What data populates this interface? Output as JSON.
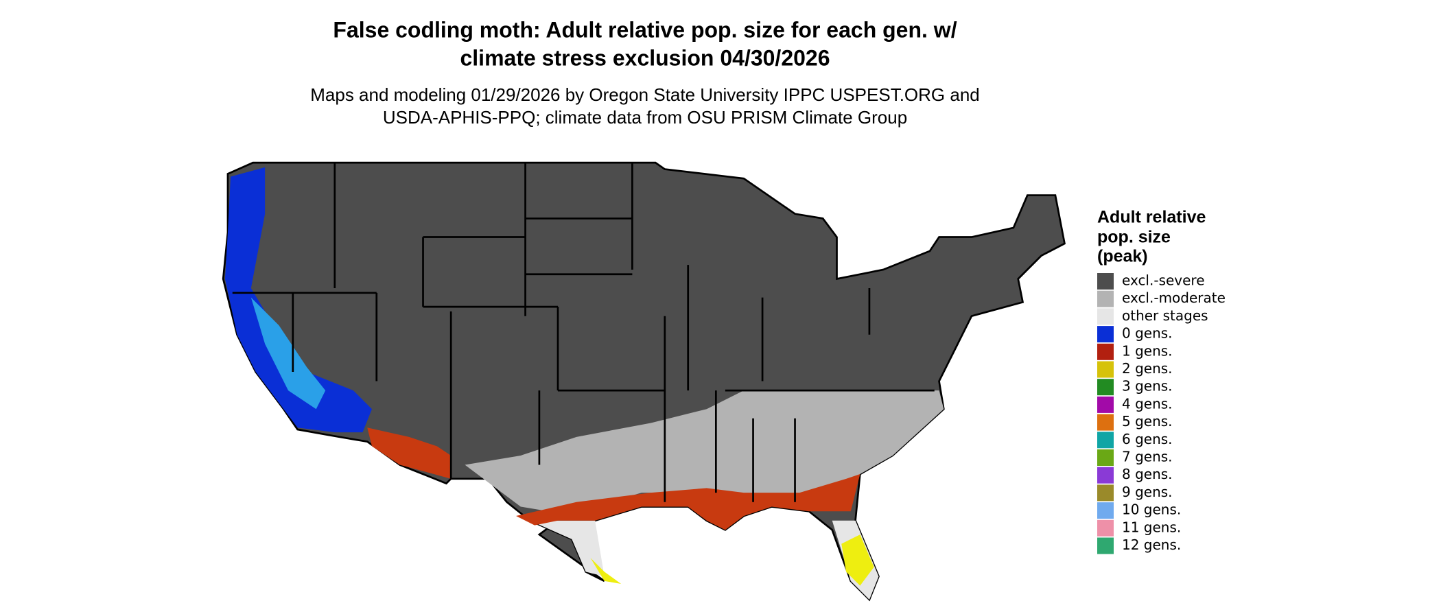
{
  "header": {
    "title": [
      "False codling moth: Adult relative pop. size for each gen. w/",
      "climate stress exclusion 04/30/2026"
    ],
    "subtitle": [
      "Maps and modeling 01/29/2026 by Oregon State University IPPC USPEST.ORG and",
      "USDA-APHIS-PPQ; climate data from OSU PRISM Climate Group"
    ]
  },
  "legend": {
    "title": [
      "Adult relative",
      "pop. size",
      "(peak)"
    ],
    "items": [
      {
        "label": "excl.-severe",
        "color": "#4d4d4d"
      },
      {
        "label": "excl.-moderate",
        "color": "#b3b3b3"
      },
      {
        "label": "other stages",
        "color": "#e6e6e6"
      },
      {
        "label": "0 gens.",
        "color": "#0a2fd6"
      },
      {
        "label": "1 gens.",
        "color": "#b22010"
      },
      {
        "label": "2 gens.",
        "color": "#d6c20a"
      },
      {
        "label": "3 gens.",
        "color": "#228b22"
      },
      {
        "label": "4 gens.",
        "color": "#a20aa8"
      },
      {
        "label": "5 gens.",
        "color": "#dd7010"
      },
      {
        "label": "6 gens.",
        "color": "#10a5a5"
      },
      {
        "label": "7 gens.",
        "color": "#6aa815"
      },
      {
        "label": "8 gens.",
        "color": "#8a3ad6"
      },
      {
        "label": "9 gens.",
        "color": "#9a8a2a"
      },
      {
        "label": "10 gens.",
        "color": "#70aaee"
      },
      {
        "label": "11 gens.",
        "color": "#ee90a8"
      },
      {
        "label": "12 gens.",
        "color": "#2fa870"
      }
    ]
  }
}
